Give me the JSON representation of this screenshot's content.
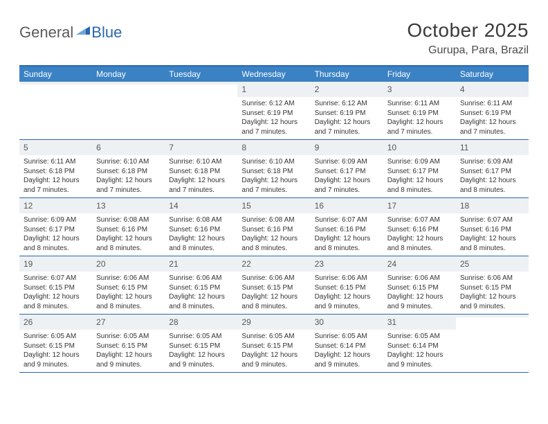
{
  "logo": {
    "text1": "General",
    "text2": "Blue"
  },
  "title": "October 2025",
  "location": "Gurupa, Para, Brazil",
  "colors": {
    "header_bg": "#3b82c4",
    "border": "#2967b0",
    "daynum_bg": "#eef1f3",
    "text": "#333333",
    "title_text": "#3a3a3a",
    "logo_gray": "#5a5a5a",
    "logo_blue": "#2967b0",
    "background": "#ffffff"
  },
  "weekdays": [
    "Sunday",
    "Monday",
    "Tuesday",
    "Wednesday",
    "Thursday",
    "Friday",
    "Saturday"
  ],
  "weeks": [
    [
      {
        "n": "",
        "sr": "",
        "ss": "",
        "dl": ""
      },
      {
        "n": "",
        "sr": "",
        "ss": "",
        "dl": ""
      },
      {
        "n": "",
        "sr": "",
        "ss": "",
        "dl": ""
      },
      {
        "n": "1",
        "sr": "Sunrise: 6:12 AM",
        "ss": "Sunset: 6:19 PM",
        "dl": "Daylight: 12 hours and 7 minutes."
      },
      {
        "n": "2",
        "sr": "Sunrise: 6:12 AM",
        "ss": "Sunset: 6:19 PM",
        "dl": "Daylight: 12 hours and 7 minutes."
      },
      {
        "n": "3",
        "sr": "Sunrise: 6:11 AM",
        "ss": "Sunset: 6:19 PM",
        "dl": "Daylight: 12 hours and 7 minutes."
      },
      {
        "n": "4",
        "sr": "Sunrise: 6:11 AM",
        "ss": "Sunset: 6:19 PM",
        "dl": "Daylight: 12 hours and 7 minutes."
      }
    ],
    [
      {
        "n": "5",
        "sr": "Sunrise: 6:11 AM",
        "ss": "Sunset: 6:18 PM",
        "dl": "Daylight: 12 hours and 7 minutes."
      },
      {
        "n": "6",
        "sr": "Sunrise: 6:10 AM",
        "ss": "Sunset: 6:18 PM",
        "dl": "Daylight: 12 hours and 7 minutes."
      },
      {
        "n": "7",
        "sr": "Sunrise: 6:10 AM",
        "ss": "Sunset: 6:18 PM",
        "dl": "Daylight: 12 hours and 7 minutes."
      },
      {
        "n": "8",
        "sr": "Sunrise: 6:10 AM",
        "ss": "Sunset: 6:18 PM",
        "dl": "Daylight: 12 hours and 7 minutes."
      },
      {
        "n": "9",
        "sr": "Sunrise: 6:09 AM",
        "ss": "Sunset: 6:17 PM",
        "dl": "Daylight: 12 hours and 7 minutes."
      },
      {
        "n": "10",
        "sr": "Sunrise: 6:09 AM",
        "ss": "Sunset: 6:17 PM",
        "dl": "Daylight: 12 hours and 8 minutes."
      },
      {
        "n": "11",
        "sr": "Sunrise: 6:09 AM",
        "ss": "Sunset: 6:17 PM",
        "dl": "Daylight: 12 hours and 8 minutes."
      }
    ],
    [
      {
        "n": "12",
        "sr": "Sunrise: 6:09 AM",
        "ss": "Sunset: 6:17 PM",
        "dl": "Daylight: 12 hours and 8 minutes."
      },
      {
        "n": "13",
        "sr": "Sunrise: 6:08 AM",
        "ss": "Sunset: 6:16 PM",
        "dl": "Daylight: 12 hours and 8 minutes."
      },
      {
        "n": "14",
        "sr": "Sunrise: 6:08 AM",
        "ss": "Sunset: 6:16 PM",
        "dl": "Daylight: 12 hours and 8 minutes."
      },
      {
        "n": "15",
        "sr": "Sunrise: 6:08 AM",
        "ss": "Sunset: 6:16 PM",
        "dl": "Daylight: 12 hours and 8 minutes."
      },
      {
        "n": "16",
        "sr": "Sunrise: 6:07 AM",
        "ss": "Sunset: 6:16 PM",
        "dl": "Daylight: 12 hours and 8 minutes."
      },
      {
        "n": "17",
        "sr": "Sunrise: 6:07 AM",
        "ss": "Sunset: 6:16 PM",
        "dl": "Daylight: 12 hours and 8 minutes."
      },
      {
        "n": "18",
        "sr": "Sunrise: 6:07 AM",
        "ss": "Sunset: 6:16 PM",
        "dl": "Daylight: 12 hours and 8 minutes."
      }
    ],
    [
      {
        "n": "19",
        "sr": "Sunrise: 6:07 AM",
        "ss": "Sunset: 6:15 PM",
        "dl": "Daylight: 12 hours and 8 minutes."
      },
      {
        "n": "20",
        "sr": "Sunrise: 6:06 AM",
        "ss": "Sunset: 6:15 PM",
        "dl": "Daylight: 12 hours and 8 minutes."
      },
      {
        "n": "21",
        "sr": "Sunrise: 6:06 AM",
        "ss": "Sunset: 6:15 PM",
        "dl": "Daylight: 12 hours and 8 minutes."
      },
      {
        "n": "22",
        "sr": "Sunrise: 6:06 AM",
        "ss": "Sunset: 6:15 PM",
        "dl": "Daylight: 12 hours and 8 minutes."
      },
      {
        "n": "23",
        "sr": "Sunrise: 6:06 AM",
        "ss": "Sunset: 6:15 PM",
        "dl": "Daylight: 12 hours and 9 minutes."
      },
      {
        "n": "24",
        "sr": "Sunrise: 6:06 AM",
        "ss": "Sunset: 6:15 PM",
        "dl": "Daylight: 12 hours and 9 minutes."
      },
      {
        "n": "25",
        "sr": "Sunrise: 6:06 AM",
        "ss": "Sunset: 6:15 PM",
        "dl": "Daylight: 12 hours and 9 minutes."
      }
    ],
    [
      {
        "n": "26",
        "sr": "Sunrise: 6:05 AM",
        "ss": "Sunset: 6:15 PM",
        "dl": "Daylight: 12 hours and 9 minutes."
      },
      {
        "n": "27",
        "sr": "Sunrise: 6:05 AM",
        "ss": "Sunset: 6:15 PM",
        "dl": "Daylight: 12 hours and 9 minutes."
      },
      {
        "n": "28",
        "sr": "Sunrise: 6:05 AM",
        "ss": "Sunset: 6:15 PM",
        "dl": "Daylight: 12 hours and 9 minutes."
      },
      {
        "n": "29",
        "sr": "Sunrise: 6:05 AM",
        "ss": "Sunset: 6:15 PM",
        "dl": "Daylight: 12 hours and 9 minutes."
      },
      {
        "n": "30",
        "sr": "Sunrise: 6:05 AM",
        "ss": "Sunset: 6:14 PM",
        "dl": "Daylight: 12 hours and 9 minutes."
      },
      {
        "n": "31",
        "sr": "Sunrise: 6:05 AM",
        "ss": "Sunset: 6:14 PM",
        "dl": "Daylight: 12 hours and 9 minutes."
      },
      {
        "n": "",
        "sr": "",
        "ss": "",
        "dl": ""
      }
    ]
  ]
}
